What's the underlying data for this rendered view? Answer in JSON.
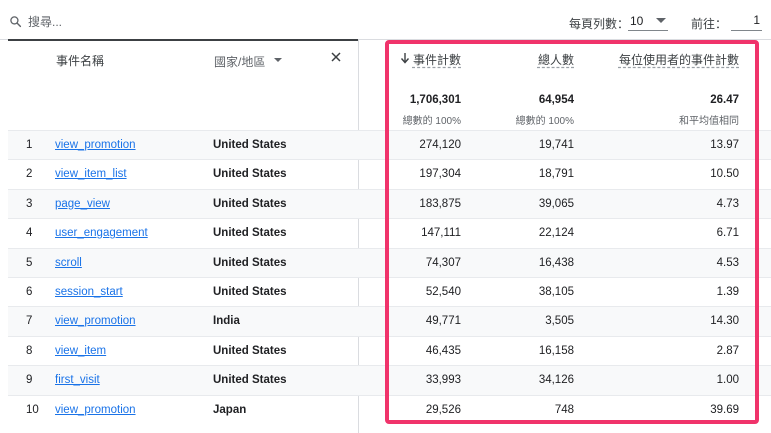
{
  "toolbar": {
    "search_placeholder": "搜尋...",
    "rows_per_page_label": "每頁列數：",
    "rows_per_page_value": "10",
    "goto_label": "前往：",
    "goto_value": "1"
  },
  "header": {
    "event_name": "事件名稱",
    "country": "國家/地區",
    "event_count": "事件計數",
    "total_users": "總人數",
    "events_per_user": "每位使用者的事件計數"
  },
  "totals": {
    "event_count": "1,706,301",
    "event_count_sub": "總數的 100%",
    "total_users": "64,954",
    "total_users_sub": "總數的 100%",
    "events_per_user": "26.47",
    "events_per_user_sub": "和平均值相同"
  },
  "rows": [
    {
      "num": "1",
      "event": "view_promotion",
      "country": "United States",
      "event_count": "274,120",
      "users": "19,741",
      "per_user": "13.97"
    },
    {
      "num": "2",
      "event": "view_item_list",
      "country": "United States",
      "event_count": "197,304",
      "users": "18,791",
      "per_user": "10.50"
    },
    {
      "num": "3",
      "event": "page_view",
      "country": "United States",
      "event_count": "183,875",
      "users": "39,065",
      "per_user": "4.73"
    },
    {
      "num": "4",
      "event": "user_engagement",
      "country": "United States",
      "event_count": "147,111",
      "users": "22,124",
      "per_user": "6.71"
    },
    {
      "num": "5",
      "event": "scroll",
      "country": "United States",
      "event_count": "74,307",
      "users": "16,438",
      "per_user": "4.53"
    },
    {
      "num": "6",
      "event": "session_start",
      "country": "United States",
      "event_count": "52,540",
      "users": "38,105",
      "per_user": "1.39"
    },
    {
      "num": "7",
      "event": "view_promotion",
      "country": "India",
      "event_count": "49,771",
      "users": "3,505",
      "per_user": "14.30"
    },
    {
      "num": "8",
      "event": "view_item",
      "country": "United States",
      "event_count": "46,435",
      "users": "16,158",
      "per_user": "2.87"
    },
    {
      "num": "9",
      "event": "first_visit",
      "country": "United States",
      "event_count": "33,993",
      "users": "34,126",
      "per_user": "1.00"
    },
    {
      "num": "10",
      "event": "view_promotion",
      "country": "Japan",
      "event_count": "29,526",
      "users": "748",
      "per_user": "39.69"
    }
  ],
  "colors": {
    "highlight": "#f0336b",
    "link": "#1a73e8"
  }
}
